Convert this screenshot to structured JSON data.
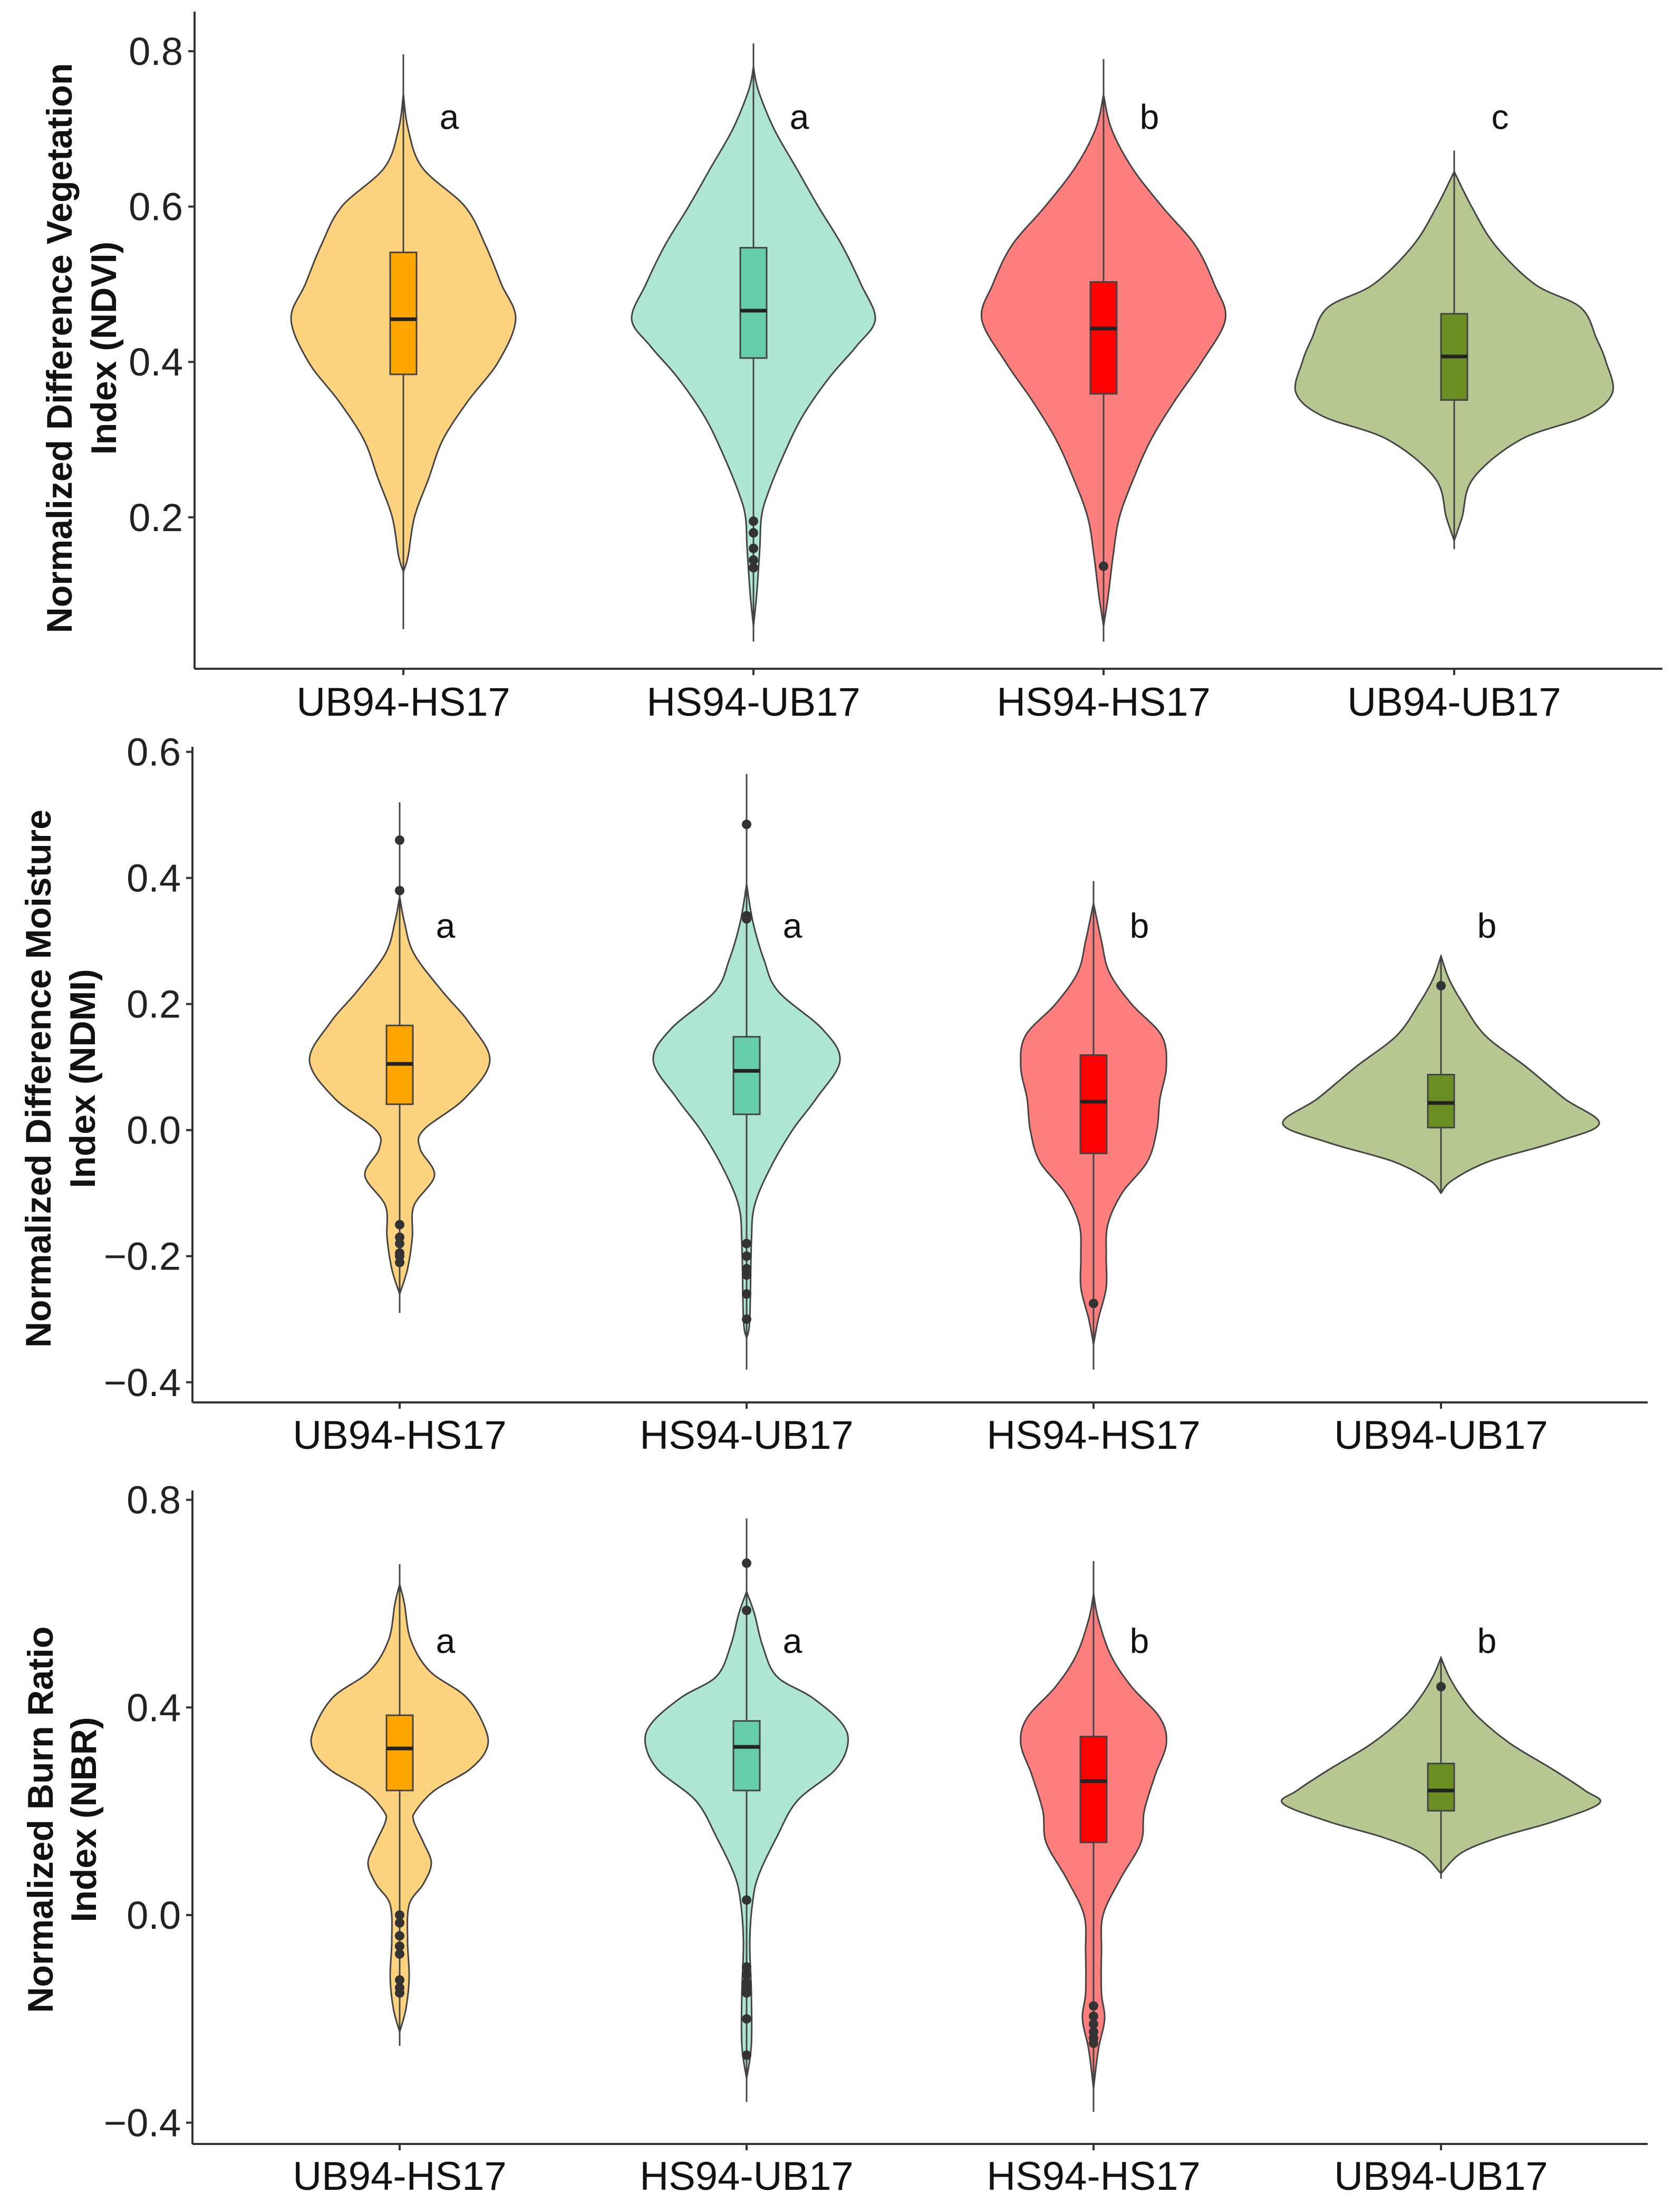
{
  "chart_data": [
    {
      "type": "violin",
      "title": "",
      "ylabel_lines": [
        "Normalized Difference Vegetation",
        "Index (NDVI)"
      ],
      "ylim": [
        0.005,
        0.851
      ],
      "yticks": [
        0.2,
        0.4,
        0.6,
        0.8
      ],
      "ytick_labels": [
        "0.2",
        "0.4",
        "0.6",
        "0.8"
      ],
      "categories": [
        "UB94-HS17",
        "HS94-UB17",
        "HS94-HS17",
        "UB94-UB17"
      ],
      "groups": [
        {
          "category": "UB94-HS17",
          "letter": "a",
          "violin_color": "#FED380",
          "box_color": "#FFA500",
          "q1": 0.384,
          "median": 0.455,
          "q3": 0.541,
          "whisker_low": 0.056,
          "whisker_high": 0.796,
          "outliers": [],
          "density": [
            [
              0.745,
              0
            ],
            [
              0.7,
              0.03
            ],
            [
              0.65,
              0.12
            ],
            [
              0.6,
              0.39
            ],
            [
              0.55,
              0.52
            ],
            [
              0.5,
              0.62
            ],
            [
              0.455,
              0.71
            ],
            [
              0.4,
              0.6
            ],
            [
              0.35,
              0.41
            ],
            [
              0.3,
              0.25
            ],
            [
              0.25,
              0.16
            ],
            [
              0.2,
              0.07
            ],
            [
              0.15,
              0.03
            ],
            [
              0.13,
              0
            ]
          ]
        },
        {
          "category": "HS94-UB17",
          "letter": "a",
          "violin_color": "#AEE6D3",
          "box_color": "#66CDAA",
          "q1": 0.405,
          "median": 0.466,
          "q3": 0.547,
          "whisker_low": 0.04,
          "whisker_high": 0.81,
          "outliers": [
            0.195,
            0.18,
            0.16,
            0.145,
            0.135
          ],
          "density": [
            [
              0.78,
              0
            ],
            [
              0.75,
              0.03
            ],
            [
              0.7,
              0.13
            ],
            [
              0.65,
              0.27
            ],
            [
              0.6,
              0.41
            ],
            [
              0.55,
              0.56
            ],
            [
              0.5,
              0.68
            ],
            [
              0.455,
              0.77
            ],
            [
              0.42,
              0.65
            ],
            [
              0.38,
              0.48
            ],
            [
              0.33,
              0.31
            ],
            [
              0.28,
              0.19
            ],
            [
              0.23,
              0.09
            ],
            [
              0.2,
              0.05
            ],
            [
              0.16,
              0.04
            ],
            [
              0.1,
              0.02
            ],
            [
              0.06,
              0
            ]
          ]
        },
        {
          "category": "HS94-HS17",
          "letter": "b",
          "violin_color": "#FF7F7F",
          "box_color": "#FF0000",
          "q1": 0.359,
          "median": 0.443,
          "q3": 0.503,
          "whisker_low": 0.04,
          "whisker_high": 0.79,
          "outliers": [
            0.137
          ],
          "density": [
            [
              0.744,
              0
            ],
            [
              0.7,
              0.05
            ],
            [
              0.65,
              0.18
            ],
            [
              0.6,
              0.37
            ],
            [
              0.55,
              0.58
            ],
            [
              0.5,
              0.7
            ],
            [
              0.455,
              0.77
            ],
            [
              0.4,
              0.62
            ],
            [
              0.35,
              0.45
            ],
            [
              0.3,
              0.3
            ],
            [
              0.25,
              0.19
            ],
            [
              0.2,
              0.1
            ],
            [
              0.15,
              0.06
            ],
            [
              0.1,
              0.03
            ],
            [
              0.06,
              0
            ]
          ]
        },
        {
          "category": "UB94-UB17",
          "letter": "c",
          "violin_color": "#B6C792",
          "box_color": "#6B8E23",
          "q1": 0.351,
          "median": 0.407,
          "q3": 0.462,
          "whisker_low": 0.159,
          "whisker_high": 0.672,
          "outliers": [],
          "density": [
            [
              0.645,
              0
            ],
            [
              0.6,
              0.11
            ],
            [
              0.55,
              0.26
            ],
            [
              0.5,
              0.51
            ],
            [
              0.47,
              0.8
            ],
            [
              0.43,
              0.9
            ],
            [
              0.4,
              0.96
            ],
            [
              0.36,
              1.0
            ],
            [
              0.33,
              0.83
            ],
            [
              0.3,
              0.42
            ],
            [
              0.25,
              0.12
            ],
            [
              0.2,
              0.05
            ],
            [
              0.17,
              0
            ]
          ]
        }
      ]
    },
    {
      "type": "violin",
      "title": "",
      "ylabel_lines": [
        "Normalized Difference Moisture",
        "Index (NDMI)"
      ],
      "ylim": [
        -0.432,
        0.608
      ],
      "yticks": [
        -0.4,
        -0.2,
        0.0,
        0.2,
        0.4,
        0.6
      ],
      "ytick_labels": [
        "−0.4",
        "−0.2",
        "0.0",
        "0.2",
        "0.4",
        "0.6"
      ],
      "categories": [
        "UB94-HS17",
        "HS94-UB17",
        "HS94-HS17",
        "UB94-UB17"
      ],
      "groups": [
        {
          "category": "UB94-HS17",
          "letter": "a",
          "violin_color": "#FED380",
          "box_color": "#FFA500",
          "q1": 0.041,
          "median": 0.105,
          "q3": 0.166,
          "whisker_low": -0.29,
          "whisker_high": 0.52,
          "outliers": [
            0.46,
            0.38,
            -0.15,
            -0.17,
            -0.18,
            -0.195,
            -0.2,
            -0.21
          ],
          "density": [
            [
              0.37,
              0
            ],
            [
              0.33,
              0.03
            ],
            [
              0.28,
              0.09
            ],
            [
              0.22,
              0.27
            ],
            [
              0.17,
              0.44
            ],
            [
              0.11,
              0.57
            ],
            [
              0.05,
              0.41
            ],
            [
              0.0,
              0.15
            ],
            [
              -0.03,
              0.13
            ],
            [
              -0.072,
              0.22
            ],
            [
              -0.12,
              0.09
            ],
            [
              -0.17,
              0.08
            ],
            [
              -0.22,
              0.05
            ],
            [
              -0.26,
              0
            ]
          ]
        },
        {
          "category": "HS94-UB17",
          "letter": "a",
          "violin_color": "#AEE6D3",
          "box_color": "#66CDAA",
          "q1": 0.025,
          "median": 0.094,
          "q3": 0.148,
          "whisker_low": -0.38,
          "whisker_high": 0.565,
          "outliers": [
            0.485,
            0.34,
            0.335,
            -0.18,
            -0.2,
            -0.22,
            -0.23,
            -0.26,
            -0.3
          ],
          "density": [
            [
              0.39,
              0
            ],
            [
              0.33,
              0.04
            ],
            [
              0.27,
              0.11
            ],
            [
              0.22,
              0.2
            ],
            [
              0.16,
              0.48
            ],
            [
              0.11,
              0.59
            ],
            [
              0.05,
              0.44
            ],
            [
              0.0,
              0.29
            ],
            [
              -0.06,
              0.15
            ],
            [
              -0.12,
              0.05
            ],
            [
              -0.18,
              0.03
            ],
            [
              -0.3,
              0.02
            ],
            [
              -0.33,
              0
            ]
          ]
        },
        {
          "category": "HS94-HS17",
          "letter": "b",
          "violin_color": "#FF7F7F",
          "box_color": "#FF0000",
          "q1": -0.037,
          "median": 0.045,
          "q3": 0.119,
          "whisker_low": -0.38,
          "whisker_high": 0.395,
          "outliers": [
            -0.275
          ],
          "density": [
            [
              0.36,
              0
            ],
            [
              0.3,
              0.05
            ],
            [
              0.25,
              0.1
            ],
            [
              0.2,
              0.24
            ],
            [
              0.15,
              0.43
            ],
            [
              0.1,
              0.46
            ],
            [
              0.05,
              0.42
            ],
            [
              0.0,
              0.4
            ],
            [
              -0.05,
              0.34
            ],
            [
              -0.1,
              0.18
            ],
            [
              -0.15,
              0.09
            ],
            [
              -0.2,
              0.08
            ],
            [
              -0.25,
              0.08
            ],
            [
              -0.3,
              0.03
            ],
            [
              -0.34,
              0
            ]
          ]
        },
        {
          "category": "UB94-UB17",
          "letter": "b",
          "violin_color": "#B6C792",
          "box_color": "#6B8E23",
          "q1": 0.004,
          "median": 0.043,
          "q3": 0.088,
          "whisker_low": -0.1,
          "whisker_high": 0.276,
          "outliers": [
            0.229
          ],
          "density": [
            [
              0.276,
              0
            ],
            [
              0.24,
              0.05
            ],
            [
              0.2,
              0.14
            ],
            [
              0.15,
              0.28
            ],
            [
              0.1,
              0.54
            ],
            [
              0.05,
              0.78
            ],
            [
              0.01,
              1.0
            ],
            [
              -0.02,
              0.71
            ],
            [
              -0.05,
              0.3
            ],
            [
              -0.08,
              0.07
            ],
            [
              -0.1,
              0
            ]
          ]
        }
      ]
    },
    {
      "type": "violin",
      "title": "",
      "ylabel_lines": [
        "Normalized Burn Ratio",
        "Index (NBR)"
      ],
      "ylim": [
        -0.441,
        0.818
      ],
      "yticks": [
        -0.4,
        0.0,
        0.4,
        0.8
      ],
      "ytick_labels": [
        "−0.4",
        "0.0",
        "0.4",
        "0.8"
      ],
      "categories": [
        "UB94-HS17",
        "HS94-UB17",
        "HS94-HS17",
        "UB94-UB17"
      ],
      "groups": [
        {
          "category": "UB94-HS17",
          "letter": "a",
          "violin_color": "#FED380",
          "box_color": "#FFA500",
          "q1": 0.24,
          "median": 0.321,
          "q3": 0.385,
          "whisker_low": -0.252,
          "whisker_high": 0.676,
          "outliers": [
            0.0,
            -0.015,
            -0.04,
            -0.06,
            -0.075,
            -0.125,
            -0.14,
            -0.15
          ],
          "density": [
            [
              0.637,
              0
            ],
            [
              0.6,
              0.03
            ],
            [
              0.53,
              0.07
            ],
            [
              0.47,
              0.19
            ],
            [
              0.42,
              0.42
            ],
            [
              0.36,
              0.54
            ],
            [
              0.32,
              0.55
            ],
            [
              0.28,
              0.44
            ],
            [
              0.24,
              0.22
            ],
            [
              0.2,
              0.1
            ],
            [
              0.18,
              0.09
            ],
            [
              0.14,
              0.15
            ],
            [
              0.1,
              0.2
            ],
            [
              0.06,
              0.15
            ],
            [
              0.02,
              0.06
            ],
            [
              -0.05,
              0.05
            ],
            [
              -0.12,
              0.06
            ],
            [
              -0.18,
              0.04
            ],
            [
              -0.225,
              0
            ]
          ]
        },
        {
          "category": "HS94-UB17",
          "letter": "a",
          "violin_color": "#AEE6D3",
          "box_color": "#66CDAA",
          "q1": 0.24,
          "median": 0.324,
          "q3": 0.374,
          "whisker_low": -0.36,
          "whisker_high": 0.764,
          "outliers": [
            0.678,
            0.587,
            0.029,
            -0.1,
            -0.115,
            -0.13,
            -0.14,
            -0.15,
            -0.2,
            -0.27
          ],
          "density": [
            [
              0.623,
              0
            ],
            [
              0.58,
              0.05
            ],
            [
              0.52,
              0.1
            ],
            [
              0.46,
              0.19
            ],
            [
              0.42,
              0.41
            ],
            [
              0.37,
              0.6
            ],
            [
              0.33,
              0.64
            ],
            [
              0.28,
              0.56
            ],
            [
              0.22,
              0.32
            ],
            [
              0.15,
              0.19
            ],
            [
              0.08,
              0.08
            ],
            [
              0.03,
              0.04
            ],
            [
              -0.05,
              0.02
            ],
            [
              -0.15,
              0.03
            ],
            [
              -0.25,
              0.03
            ],
            [
              -0.315,
              0
            ]
          ]
        },
        {
          "category": "HS94-HS17",
          "letter": "b",
          "violin_color": "#FF7F7F",
          "box_color": "#FF0000",
          "q1": 0.14,
          "median": 0.258,
          "q3": 0.344,
          "whisker_low": -0.379,
          "whisker_high": 0.682,
          "outliers": [
            -0.175,
            -0.195,
            -0.21,
            -0.225,
            -0.237,
            -0.247
          ],
          "density": [
            [
              0.619,
              0
            ],
            [
              0.57,
              0.03
            ],
            [
              0.5,
              0.11
            ],
            [
              0.44,
              0.24
            ],
            [
              0.38,
              0.42
            ],
            [
              0.33,
              0.46
            ],
            [
              0.27,
              0.39
            ],
            [
              0.2,
              0.32
            ],
            [
              0.14,
              0.3
            ],
            [
              0.07,
              0.17
            ],
            [
              0.0,
              0.06
            ],
            [
              -0.07,
              0.05
            ],
            [
              -0.15,
              0.05
            ],
            [
              -0.2,
              0.07
            ],
            [
              -0.26,
              0.03
            ],
            [
              -0.334,
              0
            ]
          ]
        },
        {
          "category": "UB94-UB17",
          "letter": "b",
          "violin_color": "#B6C792",
          "box_color": "#6B8E23",
          "q1": 0.201,
          "median": 0.24,
          "q3": 0.292,
          "whisker_low": 0.07,
          "whisker_high": 0.496,
          "outliers": [
            0.44
          ],
          "density": [
            [
              0.496,
              0
            ],
            [
              0.46,
              0.05
            ],
            [
              0.42,
              0.13
            ],
            [
              0.38,
              0.24
            ],
            [
              0.33,
              0.44
            ],
            [
              0.28,
              0.71
            ],
            [
              0.24,
              0.91
            ],
            [
              0.215,
              1.0
            ],
            [
              0.18,
              0.71
            ],
            [
              0.15,
              0.37
            ],
            [
              0.12,
              0.13
            ],
            [
              0.08,
              0
            ]
          ]
        }
      ]
    }
  ]
}
